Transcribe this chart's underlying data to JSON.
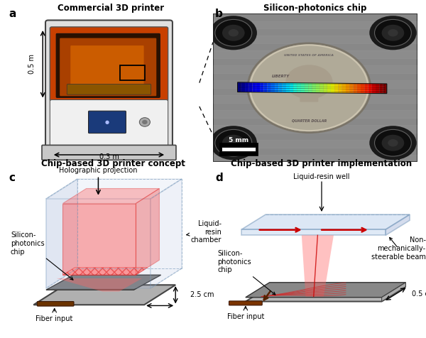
{
  "fig_width": 6.0,
  "fig_height": 4.76,
  "dpi": 100,
  "bg_color": "#ffffff",
  "panel_labels": [
    "a",
    "b",
    "c",
    "d"
  ],
  "panel_label_fontsize": 11,
  "panel_title_fontsize": 8.5,
  "annotation_fontsize": 7.0,
  "titles": [
    "Commercial 3D printer",
    "Silicon-photonics chip",
    "Chip-based 3D printer concept",
    "Chip-based 3D printer implementation"
  ]
}
